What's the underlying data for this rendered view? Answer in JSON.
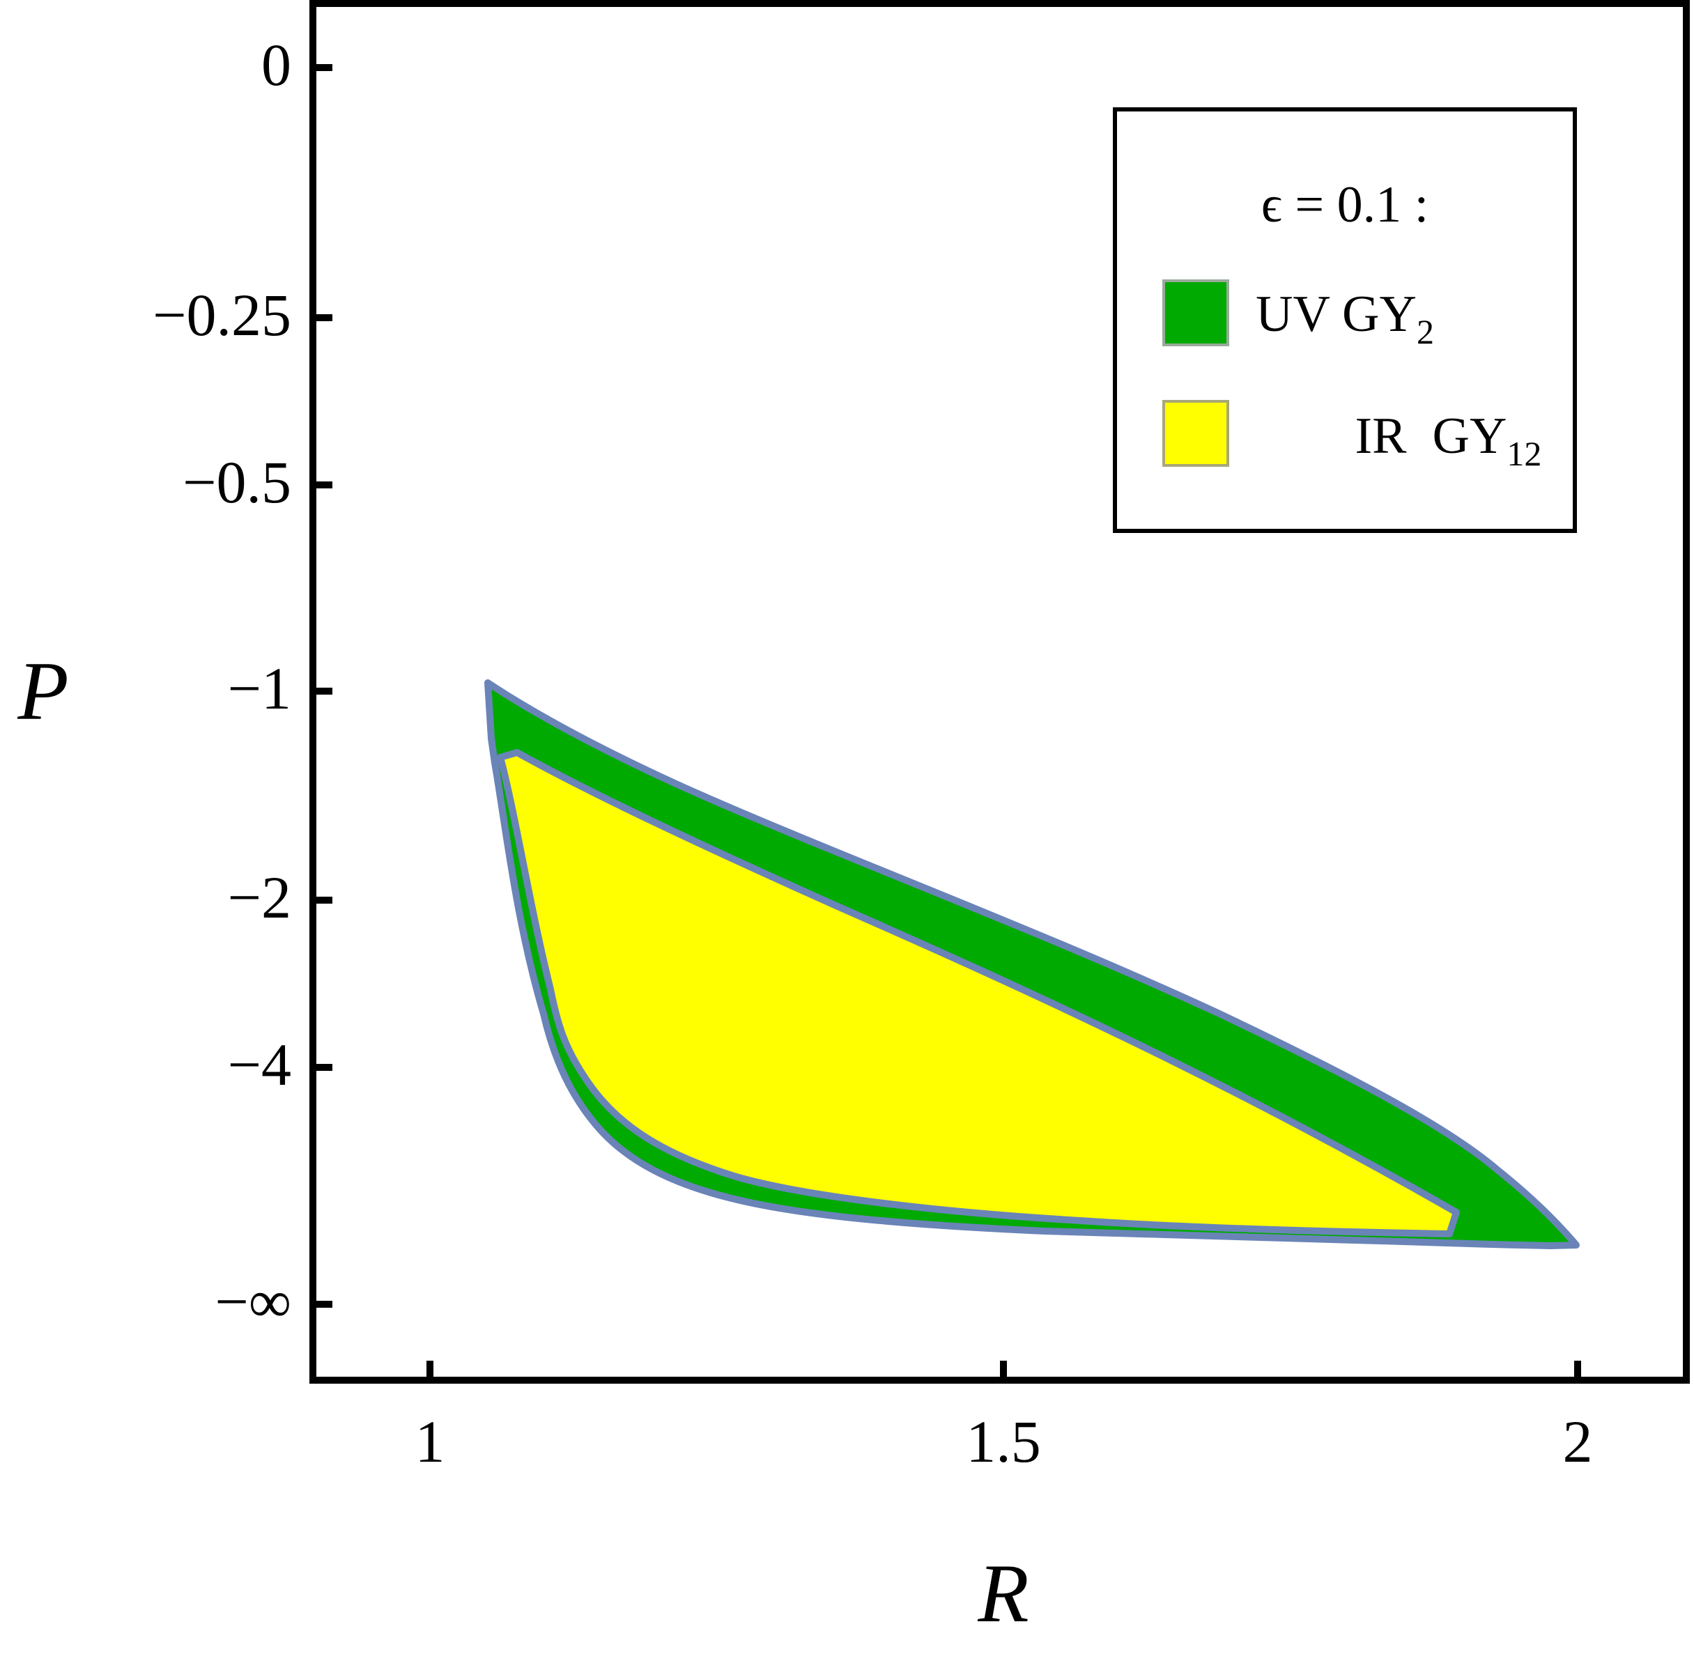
{
  "chart_data": {
    "type": "area",
    "xlabel": "R",
    "ylabel": "P",
    "xlim": [
      0.9,
      2.09
    ],
    "x_ticks": [
      {
        "value": 1,
        "label": "1"
      },
      {
        "value": 1.5,
        "label": "1.5"
      },
      {
        "value": 2,
        "label": "2"
      }
    ],
    "y_ticks": [
      {
        "value": 0,
        "label": "0"
      },
      {
        "value": -0.25,
        "label": "−0.25"
      },
      {
        "value": -0.5,
        "label": "−0.5"
      },
      {
        "value": -1,
        "label": "−1"
      },
      {
        "value": -2,
        "label": "−2"
      },
      {
        "value": -4,
        "label": "−4"
      },
      {
        "value": "-inf",
        "label": "−∞"
      }
    ],
    "y_scale": "nonlinear compactified (0, −0.25, −0.5, −1, −2, −4, −∞)",
    "grid": false,
    "legend": {
      "position": "top-right",
      "title": "ϵ = 0.1 :",
      "entries": [
        {
          "label": "UV GY",
          "subscript": "2",
          "color": "#00aa00"
        },
        {
          "label": "IR  GY",
          "subscript": "12",
          "color": "#ffff00"
        }
      ]
    },
    "outline_color": "#6a84b8",
    "series": [
      {
        "name": "UV GY₂",
        "color": "#00aa00",
        "upper_boundary": {
          "R": [
            1.05,
            1.15,
            1.3,
            1.45,
            1.6,
            1.75,
            1.85,
            1.93,
            2.0
          ],
          "P": [
            -1.0,
            -1.25,
            -1.6,
            -2.0,
            -2.5,
            -3.2,
            -4.0,
            -4.9,
            -6.0
          ]
        },
        "lower_boundary": {
          "R": [
            1.055,
            1.07,
            1.1,
            1.13,
            1.2,
            1.3,
            1.4,
            1.54,
            1.75,
            1.98
          ],
          "P": [
            -1.05,
            -1.4,
            -2.5,
            -4.0,
            -4.9,
            -5.4,
            -5.6,
            -5.8,
            -5.9,
            -6.0
          ]
        }
      },
      {
        "name": "IR GY₁₂",
        "color": "#ffff00",
        "upper_boundary": {
          "R": [
            1.06,
            1.08,
            1.2,
            1.35,
            1.5,
            1.65,
            1.8,
            1.88
          ],
          "P": [
            -1.3,
            -1.28,
            -1.6,
            -2.1,
            -2.7,
            -3.5,
            -4.6,
            -5.4
          ]
        },
        "lower_boundary": {
          "R": [
            1.065,
            1.09,
            1.11,
            1.15,
            1.2,
            1.3,
            1.45,
            1.6,
            1.87
          ],
          "P": [
            -1.35,
            -2.3,
            -3.2,
            -4.4,
            -4.9,
            -5.3,
            -5.6,
            -5.75,
            -5.9
          ]
        }
      }
    ]
  }
}
